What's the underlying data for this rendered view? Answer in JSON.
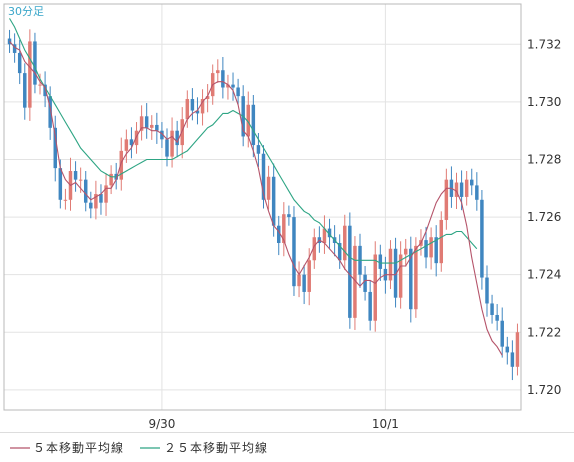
{
  "colors": {
    "background": "#ffffff",
    "grid": "#e3e3e3",
    "frame": "#b8b8b8",
    "candle_up": "#e07b74",
    "candle_down": "#3f86c0",
    "ma5": "#b5546a",
    "ma25": "#2ea584"
  },
  "chart_data": {
    "type": "candlestick",
    "period_label": "30分足",
    "y_ticks": [
      "1.732",
      "1.730",
      "1.728",
      "1.726",
      "1.724",
      "1.722",
      "1.720"
    ],
    "ylim": [
      1.7193,
      1.7334
    ],
    "grid": true,
    "x_ticks": [
      "9/30",
      "10/1"
    ],
    "x_tick_index": [
      30,
      74
    ],
    "legend": [
      {
        "label": "５本移動平均線",
        "color": "#b5546a"
      },
      {
        "label": "２５本移動平均線",
        "color": "#2ea584"
      }
    ],
    "legend_position": "bottom-left",
    "close": [
      1.732,
      1.7317,
      1.731,
      1.7298,
      1.7321,
      1.7306,
      1.7306,
      1.7302,
      1.7291,
      1.7277,
      1.7266,
      1.7266,
      1.7276,
      1.7273,
      1.7273,
      1.7265,
      1.7263,
      1.7268,
      1.7265,
      1.7271,
      1.7275,
      1.7273,
      1.7283,
      1.7287,
      1.7285,
      1.729,
      1.7295,
      1.7291,
      1.7292,
      1.729,
      1.7287,
      1.7281,
      1.729,
      1.7285,
      1.7294,
      1.7301,
      1.7297,
      1.7296,
      1.7301,
      1.7302,
      1.731,
      1.7311,
      1.7305,
      1.7306,
      1.7305,
      1.7302,
      1.7288,
      1.7299,
      1.7285,
      1.7282,
      1.7266,
      1.7274,
      1.7257,
      1.7251,
      1.7261,
      1.726,
      1.7236,
      1.724,
      1.7234,
      1.7245,
      1.7253,
      1.7251,
      1.7256,
      1.7253,
      1.7251,
      1.7245,
      1.7257,
      1.7225,
      1.725,
      1.724,
      1.7234,
      1.7224,
      1.7247,
      1.7242,
      1.7238,
      1.7249,
      1.7232,
      1.7247,
      1.7249,
      1.7228,
      1.725,
      1.7252,
      1.7246,
      1.7253,
      1.7244,
      1.7259,
      1.7273,
      1.7267,
      1.7272,
      1.7267,
      1.7273,
      1.7271,
      1.7266,
      1.7239,
      1.723,
      1.7226,
      1.7224,
      1.7215,
      1.7213,
      1.7208,
      1.722
    ],
    "ma5": [
      1.7321,
      1.7319,
      1.7318,
      1.7314,
      1.7312,
      1.731,
      1.7307,
      1.7305,
      1.7298,
      1.7288,
      1.7277,
      1.7273,
      1.7271,
      1.7272,
      1.727,
      1.7268,
      1.7266,
      1.7267,
      1.7268,
      1.727,
      1.727,
      1.7273,
      1.7279,
      1.7282,
      1.7284,
      1.7288,
      1.7291,
      1.7291,
      1.729,
      1.729,
      1.7289,
      1.7287,
      1.7288,
      1.7286,
      1.729,
      1.7294,
      1.7296,
      1.7297,
      1.73,
      1.7302,
      1.7306,
      1.7307,
      1.7307,
      1.7306,
      1.7304,
      1.7299,
      1.729,
      1.7288,
      1.7283,
      1.7277,
      1.7268,
      1.7262,
      1.7257,
      1.7255,
      1.7252,
      1.7247,
      1.7243,
      1.724,
      1.7243,
      1.7246,
      1.725,
      1.7252,
      1.7251,
      1.7249,
      1.7247,
      1.7245,
      1.7242,
      1.724,
      1.7238,
      1.7236,
      1.7238,
      1.7238,
      1.7237,
      1.7239,
      1.724,
      1.724,
      1.724,
      1.7243,
      1.7243,
      1.7246,
      1.7249,
      1.7251,
      1.7255,
      1.726,
      1.7265,
      1.7268,
      1.727,
      1.727,
      1.7269,
      1.7265,
      1.7257,
      1.7246,
      1.7237,
      1.7228,
      1.7221,
      1.7217,
      1.7215,
      1.7212
    ],
    "ma25": [
      1.7329,
      1.7326,
      1.7322,
      1.7318,
      1.7315,
      1.7312,
      1.7308,
      1.7305,
      1.7302,
      1.7299,
      1.7296,
      1.7293,
      1.729,
      1.7287,
      1.7284,
      1.7282,
      1.728,
      1.7278,
      1.7276,
      1.7275,
      1.7274,
      1.7274,
      1.7275,
      1.7276,
      1.7277,
      1.7278,
      1.7279,
      1.728,
      1.728,
      1.728,
      1.728,
      1.728,
      1.728,
      1.7281,
      1.7282,
      1.7283,
      1.7285,
      1.7287,
      1.7289,
      1.7291,
      1.7292,
      1.7294,
      1.7296,
      1.7296,
      1.7297,
      1.7296,
      1.7295,
      1.7293,
      1.729,
      1.7287,
      1.7284,
      1.7281,
      1.7278,
      1.7275,
      1.7272,
      1.7269,
      1.7266,
      1.7264,
      1.7262,
      1.7261,
      1.7259,
      1.7258,
      1.7256,
      1.7254,
      1.7252,
      1.725,
      1.7248,
      1.7246,
      1.7245,
      1.7245,
      1.7245,
      1.7245,
      1.7245,
      1.7244,
      1.7244,
      1.7244,
      1.7244,
      1.7245,
      1.7246,
      1.7247,
      1.7248,
      1.7249,
      1.725,
      1.7251,
      1.7252,
      1.7253,
      1.7254,
      1.7254,
      1.7255,
      1.7255,
      1.7253,
      1.7251,
      1.7249
    ]
  }
}
